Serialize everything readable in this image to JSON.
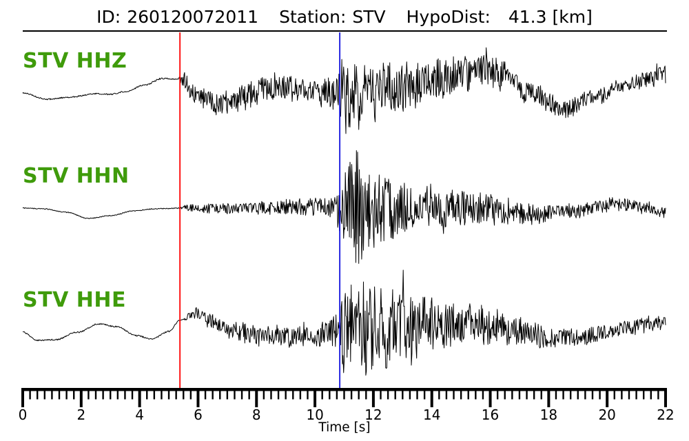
{
  "title": {
    "parts": [
      {
        "label": "ID:",
        "value": "260120072011"
      },
      {
        "label": "Station:",
        "value": "STV"
      },
      {
        "label": "HypoDist:",
        "value": "41.3 [km]"
      }
    ]
  },
  "chart_data": {
    "type": "line",
    "subtype": "seismogram-3-component",
    "title": "ID: 260120072011   Station: STV   HypoDist:    41.3 [km]",
    "event_id": "260120072011",
    "station": "STV",
    "hypodist_km": 41.3,
    "xlabel": "Time [s]",
    "xlim": [
      0,
      22
    ],
    "xticks_major": [
      0,
      2,
      4,
      6,
      8,
      10,
      12,
      14,
      16,
      18,
      20,
      22
    ],
    "minor_tick_step": 0.25,
    "grid": false,
    "trace_color": "#000000",
    "label_color": "#3f9b0b",
    "axis_color": "#000000",
    "sample_dt": 0.02,
    "markers": [
      {
        "name": "red-pick",
        "t": 5.38,
        "color": "#ff0000"
      },
      {
        "name": "blue-pick",
        "t": 10.85,
        "color": "#1111dd"
      }
    ],
    "traces": [
      {
        "id": "HHZ",
        "label": "STV HHZ",
        "seed": 7,
        "baseline": [
          [
            0,
            135
          ],
          [
            0.83,
            144
          ],
          [
            1.6,
            141
          ],
          [
            2.5,
            136
          ],
          [
            3.0,
            137
          ],
          [
            3.5,
            133
          ],
          [
            4.2,
            123
          ],
          [
            4.76,
            114
          ],
          [
            5.38,
            115
          ],
          [
            6.0,
            139
          ],
          [
            6.8,
            151
          ],
          [
            7.6,
            142
          ],
          [
            8.5,
            124
          ],
          [
            9.2,
            129
          ],
          [
            9.8,
            132
          ],
          [
            10.5,
            135
          ],
          [
            10.85,
            138
          ],
          [
            11.5,
            142
          ],
          [
            12.5,
            130
          ],
          [
            13.5,
            122
          ],
          [
            14.5,
            113
          ],
          [
            15.8,
            101
          ],
          [
            16.5,
            112
          ],
          [
            17.3,
            133
          ],
          [
            18.55,
            158
          ],
          [
            19.5,
            143
          ],
          [
            20.5,
            126
          ],
          [
            21.3,
            116
          ],
          [
            22,
            107
          ]
        ],
        "envelope": [
          [
            0,
            0.8
          ],
          [
            5.32,
            0.9
          ],
          [
            5.5,
            11
          ],
          [
            6.2,
            14
          ],
          [
            7.0,
            16
          ],
          [
            8.0,
            18
          ],
          [
            8.8,
            17
          ],
          [
            9.6,
            17
          ],
          [
            10.4,
            19
          ],
          [
            10.8,
            26
          ],
          [
            11.1,
            40
          ],
          [
            11.8,
            38
          ],
          [
            12.5,
            36
          ],
          [
            13.2,
            30
          ],
          [
            14.0,
            27
          ],
          [
            15.0,
            24
          ],
          [
            16.0,
            21
          ],
          [
            16.8,
            17
          ],
          [
            17.6,
            14
          ],
          [
            18.5,
            12
          ],
          [
            19.4,
            10
          ],
          [
            20.2,
            9
          ],
          [
            21.0,
            10
          ],
          [
            22,
            12
          ]
        ],
        "spikes": [
          [
            10.92,
            -52
          ],
          [
            11.05,
            55
          ],
          [
            11.35,
            -48
          ],
          [
            12.05,
            42
          ],
          [
            15.85,
            -32
          ],
          [
            21.7,
            -18
          ]
        ]
      },
      {
        "id": "HHN",
        "label": "STV HHN",
        "seed": 13,
        "baseline": [
          [
            0,
            302
          ],
          [
            0.7,
            303
          ],
          [
            1.5,
            308
          ],
          [
            2.25,
            317
          ],
          [
            3.0,
            313
          ],
          [
            3.8,
            306
          ],
          [
            4.5,
            303
          ],
          [
            5.38,
            302
          ],
          [
            7.0,
            303
          ],
          [
            8.5,
            301
          ],
          [
            10.0,
            300
          ],
          [
            10.85,
            302
          ],
          [
            12.0,
            301
          ],
          [
            13.5,
            303
          ],
          [
            15.0,
            303
          ],
          [
            16.2,
            305
          ],
          [
            17.6,
            311
          ],
          [
            18.8,
            306
          ],
          [
            20.3,
            296
          ],
          [
            21.3,
            301
          ],
          [
            22,
            309
          ]
        ],
        "envelope": [
          [
            0,
            0.5
          ],
          [
            5.35,
            0.6
          ],
          [
            5.55,
            5
          ],
          [
            6.5,
            6
          ],
          [
            7.5,
            7
          ],
          [
            8.5,
            9
          ],
          [
            9.5,
            10
          ],
          [
            10.3,
            11
          ],
          [
            10.75,
            13
          ],
          [
            10.95,
            45
          ],
          [
            11.3,
            72
          ],
          [
            11.7,
            60
          ],
          [
            12.2,
            48
          ],
          [
            12.8,
            38
          ],
          [
            13.5,
            30
          ],
          [
            14.3,
            27
          ],
          [
            15.2,
            22
          ],
          [
            16.0,
            19
          ],
          [
            16.8,
            15
          ],
          [
            17.6,
            12
          ],
          [
            18.5,
            10
          ],
          [
            19.4,
            9
          ],
          [
            20.4,
            9
          ],
          [
            21.3,
            8
          ],
          [
            22,
            8
          ]
        ],
        "spikes": [
          [
            10.78,
            28
          ],
          [
            11.15,
            -60
          ],
          [
            11.42,
            -83
          ],
          [
            11.5,
            81
          ],
          [
            11.65,
            62
          ],
          [
            13.95,
            -36
          ],
          [
            14.4,
            36
          ]
        ]
      },
      {
        "id": "HHE",
        "label": "STV HHE",
        "seed": 29,
        "baseline": [
          [
            0,
            482
          ],
          [
            0.5,
            494
          ],
          [
            1.1,
            493
          ],
          [
            1.9,
            482
          ],
          [
            2.6,
            470
          ],
          [
            3.2,
            474
          ],
          [
            3.9,
            487
          ],
          [
            4.4,
            492
          ],
          [
            5.0,
            481
          ],
          [
            5.38,
            465
          ],
          [
            5.9,
            455
          ],
          [
            6.5,
            466
          ],
          [
            7.2,
            480
          ],
          [
            8.0,
            487
          ],
          [
            9.0,
            488
          ],
          [
            10.0,
            484
          ],
          [
            10.85,
            479
          ],
          [
            12.0,
            477
          ],
          [
            13.0,
            476
          ],
          [
            14.0,
            471
          ],
          [
            15.0,
            468
          ],
          [
            16.0,
            472
          ],
          [
            17.0,
            482
          ],
          [
            18.0,
            490
          ],
          [
            18.8,
            491
          ],
          [
            19.8,
            483
          ],
          [
            20.8,
            475
          ],
          [
            21.5,
            470
          ],
          [
            22,
            467
          ]
        ],
        "envelope": [
          [
            0,
            0.8
          ],
          [
            5.45,
            0.9
          ],
          [
            5.75,
            6
          ],
          [
            6.3,
            10
          ],
          [
            7.2,
            12
          ],
          [
            8.2,
            13
          ],
          [
            9.2,
            14
          ],
          [
            10.2,
            16
          ],
          [
            10.75,
            20
          ],
          [
            11.0,
            50
          ],
          [
            11.5,
            60
          ],
          [
            12.0,
            52
          ],
          [
            12.6,
            47
          ],
          [
            13.1,
            44
          ],
          [
            13.7,
            36
          ],
          [
            14.4,
            30
          ],
          [
            15.2,
            26
          ],
          [
            16.0,
            23
          ],
          [
            16.9,
            19
          ],
          [
            17.7,
            14
          ],
          [
            18.5,
            12
          ],
          [
            19.4,
            11
          ],
          [
            20.4,
            10
          ],
          [
            21.3,
            10
          ],
          [
            22,
            9
          ]
        ],
        "spikes": [
          [
            10.97,
            62
          ],
          [
            11.12,
            -48
          ],
          [
            11.75,
            62
          ],
          [
            12.25,
            -58
          ],
          [
            13.02,
            -84
          ],
          [
            13.3,
            55
          ]
        ]
      }
    ]
  }
}
